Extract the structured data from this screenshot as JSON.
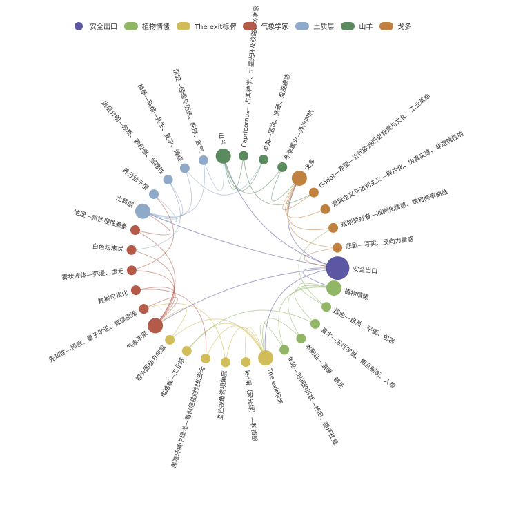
{
  "legend": [
    {
      "name": "安全出口",
      "color": "#5b57a2"
    },
    {
      "name": "植物情愫",
      "color": "#90b666"
    },
    {
      "name": "The exit标牌",
      "color": "#d0bc58"
    },
    {
      "name": "气象学家",
      "color": "#b35a48"
    },
    {
      "name": "土质层",
      "color": "#8fa9c8"
    },
    {
      "name": "山羊",
      "color": "#5a8a5e"
    },
    {
      "name": "戈多",
      "color": "#c0803f"
    }
  ],
  "nodes": [
    {
      "id": "exit",
      "label": "安全出口",
      "cat": 0,
      "major": true
    },
    {
      "id": "p1",
      "label": "植物情愫",
      "cat": 1,
      "major": true
    },
    {
      "id": "p2",
      "label": "绿色—自然、平衡、包容",
      "cat": 1
    },
    {
      "id": "p3",
      "label": "喜木—五行学说、相互制衡、人缘",
      "cat": 1
    },
    {
      "id": "p4",
      "label": "木制品—温暖、朝圣",
      "cat": 1
    },
    {
      "id": "p5",
      "label": "年轮—时间的形状—怀旧、循环往复",
      "cat": 1
    },
    {
      "id": "t1",
      "label": "The exit标牌",
      "cat": 2,
      "major": true
    },
    {
      "id": "t2",
      "label": "led屏（荧光绿）—科技感",
      "cat": 2
    },
    {
      "id": "t3",
      "label": "监控视角俯视角度",
      "cat": 2
    },
    {
      "id": "t4",
      "label": "黑暗环境中绿光—看似危险时刻却安全",
      "cat": 2
    },
    {
      "id": "t5",
      "label": "电路板—工业感",
      "cat": 2
    },
    {
      "id": "t6",
      "label": "箭头图标方向感",
      "cat": 2
    },
    {
      "id": "m1",
      "label": "气象学家",
      "cat": 3,
      "major": true
    },
    {
      "id": "m2",
      "label": "先知性—预感、量子学说、直线思维",
      "cat": 3
    },
    {
      "id": "m3",
      "label": "数据可视化",
      "cat": 3
    },
    {
      "id": "m4",
      "label": "雾状液体—弥漫、虚无",
      "cat": 3
    },
    {
      "id": "m5",
      "label": "白色粉末状",
      "cat": 3
    },
    {
      "id": "m6",
      "label": "地理—感性理性兼备",
      "cat": 3
    },
    {
      "id": "s1",
      "label": "土质层",
      "cat": 4,
      "major": true
    },
    {
      "id": "s2",
      "label": "养分给予型",
      "cat": 4
    },
    {
      "id": "s3",
      "label": "层层分明—砂质、颗粒感、层理性",
      "cat": 4
    },
    {
      "id": "s4",
      "label": "根系—联结—共生、复杂、缠绕",
      "cat": 4
    },
    {
      "id": "s5",
      "label": "沉淀—经验与历练、秩序、底气",
      "cat": 4
    },
    {
      "id": "g1",
      "label": "山羊",
      "cat": 5,
      "major": true
    },
    {
      "id": "g2",
      "label": "Capricornus—古典神学、土星光环及纹路、冬季家",
      "cat": 5
    },
    {
      "id": "g3",
      "label": "羊角—固执、坚硬、盘旋缠绕",
      "cat": 5
    },
    {
      "id": "g4",
      "label": "冬季薰火—外冷内热",
      "cat": 5
    },
    {
      "id": "d1",
      "label": "戈多",
      "cat": 6,
      "major": true
    },
    {
      "id": "d2",
      "label": "Godot—希望—近代欧洲历史背景与文化、工业革命",
      "cat": 6
    },
    {
      "id": "d3",
      "label": "荒诞主义与达利主义—碎片化、伪真实感、非逻辑性的",
      "cat": 6
    },
    {
      "id": "d4",
      "label": "戏剧爱好者—戏剧化情感、跌宕频率曲线",
      "cat": 6
    },
    {
      "id": "d5",
      "label": "悲剧—写实、反向力量感",
      "cat": 6
    }
  ],
  "links": [
    [
      "exit",
      "p1"
    ],
    [
      "exit",
      "t1"
    ],
    [
      "exit",
      "m1"
    ],
    [
      "exit",
      "s1"
    ],
    [
      "exit",
      "g1"
    ],
    [
      "exit",
      "d1"
    ],
    [
      "p1",
      "p2"
    ],
    [
      "p1",
      "p3"
    ],
    [
      "p1",
      "p4"
    ],
    [
      "p1",
      "p5"
    ],
    [
      "t1",
      "t2"
    ],
    [
      "t1",
      "t3"
    ],
    [
      "t1",
      "t4"
    ],
    [
      "t1",
      "t5"
    ],
    [
      "t1",
      "t6"
    ],
    [
      "m1",
      "m2"
    ],
    [
      "m1",
      "m3"
    ],
    [
      "m1",
      "m4"
    ],
    [
      "m1",
      "m5"
    ],
    [
      "m1",
      "m6"
    ],
    [
      "s1",
      "s2"
    ],
    [
      "s1",
      "s3"
    ],
    [
      "s1",
      "s4"
    ],
    [
      "s1",
      "s5"
    ],
    [
      "g1",
      "g2"
    ],
    [
      "g1",
      "g3"
    ],
    [
      "g1",
      "g4"
    ],
    [
      "d1",
      "d2"
    ],
    [
      "d1",
      "d3"
    ],
    [
      "d1",
      "d4"
    ],
    [
      "d1",
      "d5"
    ],
    [
      "p5",
      "t1"
    ],
    [
      "p4",
      "t1"
    ],
    [
      "t6",
      "m1"
    ],
    [
      "m6",
      "s1"
    ],
    [
      "m4",
      "s2"
    ],
    [
      "s5",
      "g1"
    ],
    [
      "g4",
      "d1"
    ],
    [
      "d5",
      "exit"
    ],
    [
      "p2",
      "d4"
    ],
    [
      "t3",
      "m2"
    ],
    [
      "s3",
      "m5"
    ],
    [
      "g2",
      "d2"
    ],
    [
      "p3",
      "t5"
    ],
    [
      "m3",
      "t4"
    ],
    [
      "s4",
      "g3"
    ]
  ]
}
